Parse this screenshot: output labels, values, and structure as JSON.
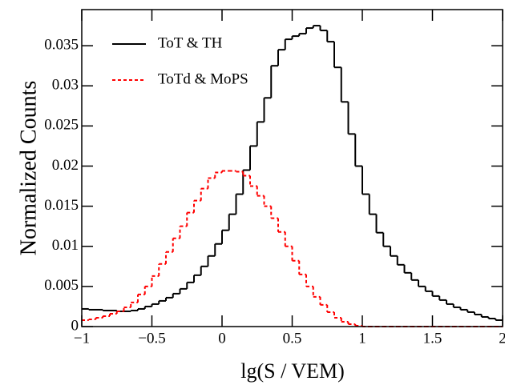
{
  "chart_data": {
    "type": "histogram",
    "xlabel": "lg(S / VEM)",
    "ylabel": "Normalized Counts",
    "bins": [
      -1,
      -0.95,
      -0.9,
      -0.85,
      -0.8,
      -0.75,
      -0.7,
      -0.65,
      -0.6,
      -0.55,
      -0.5,
      -0.45,
      -0.4,
      -0.35,
      -0.3,
      -0.25,
      -0.2,
      -0.15,
      -0.1,
      -0.05,
      0,
      0.05,
      0.1,
      0.15,
      0.2,
      0.25,
      0.3,
      0.35,
      0.4,
      0.45,
      0.5,
      0.55,
      0.6,
      0.65,
      0.7,
      0.75,
      0.8,
      0.85,
      0.9,
      0.95,
      1,
      1.05,
      1.1,
      1.15,
      1.2,
      1.25,
      1.3,
      1.35,
      1.4,
      1.45,
      1.5,
      1.55,
      1.6,
      1.65,
      1.7,
      1.75,
      1.8,
      1.85,
      1.9,
      1.95,
      2
    ],
    "series": [
      {
        "name": "ToT & TH",
        "color": "#000000",
        "dash": false,
        "values": [
          0.0022,
          0.0021,
          0.0021,
          0.002,
          0.002,
          0.0019,
          0.0019,
          0.002,
          0.0022,
          0.0025,
          0.0028,
          0.0032,
          0.0036,
          0.0041,
          0.0047,
          0.0055,
          0.0064,
          0.0075,
          0.0088,
          0.0103,
          0.012,
          0.014,
          0.0165,
          0.0195,
          0.0225,
          0.0255,
          0.0285,
          0.0325,
          0.0345,
          0.0358,
          0.0362,
          0.0365,
          0.0372,
          0.0375,
          0.0369,
          0.0355,
          0.0323,
          0.028,
          0.024,
          0.02,
          0.0165,
          0.014,
          0.0117,
          0.01,
          0.0088,
          0.0077,
          0.0067,
          0.0058,
          0.005,
          0.0044,
          0.0038,
          0.0033,
          0.0028,
          0.0024,
          0.0021,
          0.0018,
          0.0015,
          0.0012,
          0.001,
          0.0008
        ]
      },
      {
        "name": "ToTd & MoPS",
        "color": "#ff0000",
        "dash": true,
        "values": [
          0.0008,
          0.0009,
          0.0011,
          0.0013,
          0.0016,
          0.0019,
          0.0024,
          0.003,
          0.004,
          0.005,
          0.0063,
          0.0078,
          0.0093,
          0.011,
          0.0125,
          0.0142,
          0.0157,
          0.0172,
          0.0185,
          0.0192,
          0.0194,
          0.0194,
          0.0193,
          0.0188,
          0.0175,
          0.0163,
          0.015,
          0.0135,
          0.0118,
          0.01,
          0.0082,
          0.0065,
          0.005,
          0.0037,
          0.0027,
          0.0018,
          0.0011,
          0.0006,
          0.0003,
          0.0001,
          0,
          0,
          0,
          0,
          0,
          0,
          0,
          0,
          0,
          0,
          0,
          0,
          0,
          0,
          0,
          0,
          0,
          0,
          0,
          0
        ]
      }
    ],
    "xlim": [
      -1,
      2
    ],
    "xticks": [
      {
        "value": -1,
        "label": "−1"
      },
      {
        "value": -0.5,
        "label": "−0.5"
      },
      0,
      0.5,
      1,
      1.5,
      2
    ],
    "ylim": [
      0,
      0.0395
    ],
    "yticks": [
      0,
      0.005,
      0.01,
      0.015,
      0.02,
      0.025,
      0.03,
      0.035
    ],
    "legend": "upper left"
  }
}
